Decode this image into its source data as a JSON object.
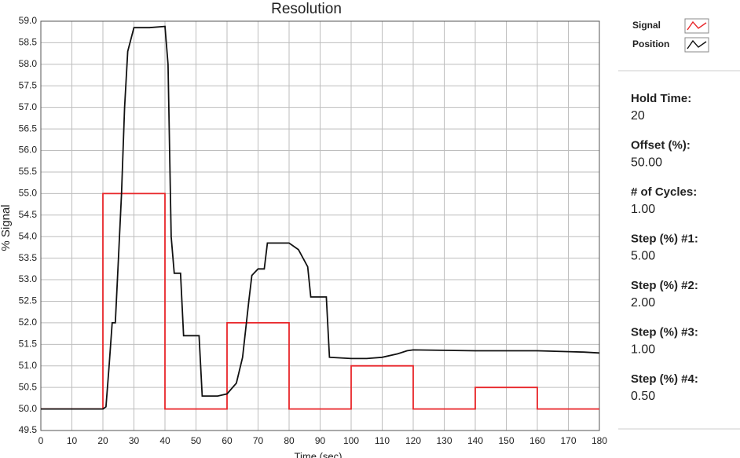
{
  "chart_data": {
    "type": "line",
    "title": "Resolution",
    "x_label": "Time (sec)",
    "y_label": "% Signal",
    "xlim": [
      0,
      180
    ],
    "xticks": [
      0,
      10,
      20,
      30,
      40,
      50,
      60,
      70,
      80,
      90,
      100,
      110,
      120,
      130,
      140,
      150,
      160,
      170,
      180
    ],
    "ylim": [
      49.5,
      59.0
    ],
    "yticks": [
      49.5,
      {
        "value": 50,
        "label": "50.0"
      },
      50.5,
      {
        "value": 51,
        "label": "51.0"
      },
      51.5,
      {
        "value": 52,
        "label": "52.0"
      },
      52.5,
      {
        "value": 53,
        "label": "53.0"
      },
      53.5,
      {
        "value": 54,
        "label": "54.0"
      },
      54.5,
      {
        "value": 55,
        "label": "55.0"
      },
      55.5,
      {
        "value": 56,
        "label": "56.0"
      },
      56.5,
      {
        "value": 57,
        "label": "57.0"
      },
      57.5,
      {
        "value": 58,
        "label": "58.0"
      },
      58.5,
      {
        "value": 59,
        "label": "59.0"
      }
    ],
    "grid": true,
    "series": [
      {
        "name": "Signal",
        "color": "#e8262a",
        "x": [
          0,
          20,
          20,
          40,
          40,
          60,
          60,
          80,
          80,
          100,
          100,
          120,
          120,
          140,
          140,
          160,
          160,
          180
        ],
        "values": [
          50,
          50,
          55,
          55,
          50,
          50,
          52,
          52,
          50,
          50,
          51,
          51,
          50,
          50,
          50.5,
          50.5,
          50,
          50
        ]
      },
      {
        "name": "Position",
        "color": "#111111",
        "x": [
          0,
          20,
          21,
          22,
          23,
          24,
          25,
          26,
          27,
          28,
          30,
          35,
          40,
          41,
          42,
          43,
          45,
          46,
          51,
          52,
          57,
          60,
          63,
          65,
          67,
          68,
          70,
          72,
          73,
          80,
          83,
          86,
          87,
          92,
          93,
          100,
          105,
          110,
          115,
          118,
          120,
          140,
          160,
          170,
          175,
          180
        ],
        "values": [
          50,
          50,
          50.05,
          51,
          52,
          52,
          53.5,
          55,
          57,
          58.3,
          58.85,
          58.85,
          58.88,
          58,
          54,
          53.15,
          53.15,
          51.7,
          51.7,
          50.3,
          50.3,
          50.35,
          50.6,
          51.2,
          52.5,
          53.1,
          53.25,
          53.25,
          53.85,
          53.85,
          53.7,
          53.3,
          52.6,
          52.6,
          51.2,
          51.17,
          51.17,
          51.2,
          51.28,
          51.35,
          51.37,
          51.35,
          51.35,
          51.33,
          51.32,
          51.3
        ]
      }
    ],
    "panel": [
      {
        "label": "Hold Time:",
        "value": "20"
      },
      {
        "label": "Offset (%):",
        "value": "50.00"
      },
      {
        "label": "# of Cycles:",
        "value": "1.00"
      },
      {
        "label": "Step (%) #1:",
        "value": "5.00"
      },
      {
        "label": "Step (%) #2:",
        "value": "2.00"
      },
      {
        "label": "Step (%) #3:",
        "value": "1.00"
      },
      {
        "label": "Step (%) #4:",
        "value": "0.50"
      }
    ]
  }
}
